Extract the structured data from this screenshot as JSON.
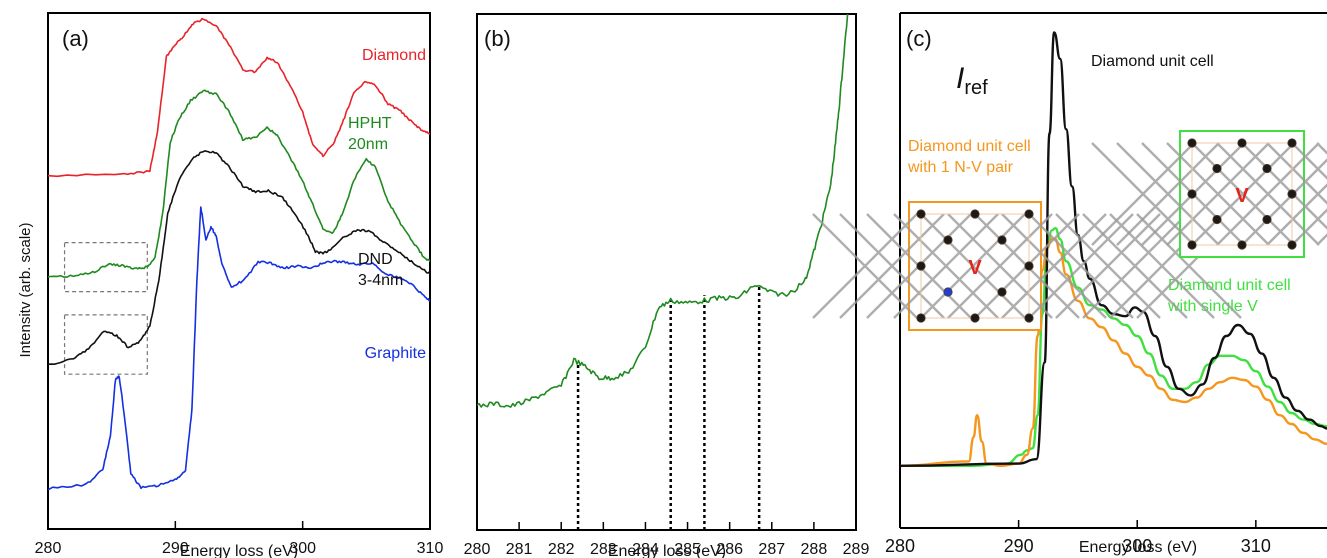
{
  "figure": {
    "shared_ylabel": "Intensitv (arb. scale)"
  },
  "chart_data": [
    {
      "type": "line",
      "panel_label": "(a)",
      "xlabel": "Energy loss (eV)",
      "ylabel": "Intensitv (arb. scale)",
      "xlim": [
        280,
        310
      ],
      "ylim": [
        0,
        100
      ],
      "xticks": [
        280,
        290,
        300,
        310
      ],
      "xtick_labels": [
        "280",
        "290",
        "300",
        "310"
      ],
      "grid": false,
      "series": [
        {
          "name": "Diamond",
          "label_lines": [
            "Diamond"
          ],
          "color": "#e8232a",
          "x": [
            280,
            286,
            288,
            288.6,
            289.3,
            289.9,
            290.6,
            291.4,
            292.2,
            293.2,
            294.2,
            295.3,
            296.3,
            297.2,
            298,
            299,
            300,
            300.8,
            301.6,
            302.4,
            303.2,
            304,
            305,
            305.8,
            306.7,
            307.7,
            308.6,
            309.4,
            310
          ],
          "values": [
            68.5,
            68.7,
            69.4,
            77,
            91.5,
            93.5,
            95.5,
            98,
            98.8,
            97.5,
            94,
            89,
            88.5,
            91.3,
            90.5,
            86,
            80.8,
            74.5,
            72.4,
            74.5,
            79.2,
            84.5,
            86.8,
            85.8,
            82.4,
            81,
            78.8,
            77.1,
            76.6
          ]
        },
        {
          "name": "HPHT 20nm",
          "label_lines": [
            "HPHT",
            "20nm"
          ],
          "color": "#1f8a1f",
          "x": [
            280,
            282,
            283.5,
            284.8,
            285.8,
            286.8,
            287.8,
            288.4,
            289,
            289.6,
            290.3,
            291.2,
            292.2,
            293.2,
            294.2,
            295.3,
            296.3,
            297.2,
            298,
            299,
            300,
            300.8,
            301.6,
            302.4,
            303.2,
            304,
            305,
            305.8,
            306.7,
            307.7,
            308.6,
            309.4,
            310
          ],
          "values": [
            48.8,
            49,
            49.7,
            51.3,
            51.1,
            50.4,
            50.8,
            52.6,
            61,
            75,
            79.5,
            83,
            84.9,
            84.3,
            81,
            75.5,
            75.8,
            77.9,
            76.2,
            72,
            67.5,
            62.8,
            58.2,
            57.4,
            61.5,
            67.5,
            71.8,
            69.8,
            63.5,
            59.2,
            55.8,
            53.1,
            51.8
          ]
        },
        {
          "name": "DND 3-4nm",
          "label_lines": [
            "DND",
            "3-4nm"
          ],
          "color": "#111111",
          "x": [
            280,
            282,
            283.2,
            284.4,
            285.4,
            286.3,
            287.2,
            288,
            288.7,
            289.4,
            290.2,
            291.2,
            292.2,
            293.2,
            294.2,
            295.3,
            296.3,
            297.3,
            298.3,
            299.3,
            300.3,
            301,
            301.6,
            302.3,
            303.3,
            304.3,
            305.3,
            306.3,
            307.3,
            308.3,
            309.3,
            310
          ],
          "values": [
            31.8,
            33,
            35,
            38.3,
            37.5,
            35.2,
            36.3,
            39.4,
            48,
            61,
            67.2,
            71.4,
            73.3,
            72.9,
            70.2,
            66.5,
            65.3,
            65.5,
            64.5,
            61.5,
            57.4,
            53.8,
            53.3,
            54.4,
            56.7,
            58,
            57.6,
            55.7,
            54.1,
            52.2,
            50.6,
            49.4
          ]
        },
        {
          "name": "Graphite",
          "label_lines": [
            "Graphite"
          ],
          "color": "#1430e0",
          "x": [
            280,
            283,
            284.3,
            284.9,
            285.3,
            285.6,
            286,
            286.5,
            287.3,
            288.5,
            290,
            290.8,
            291.3,
            291.7,
            292,
            292.4,
            292.8,
            293.2,
            293.7,
            294.4,
            295.4,
            296.5,
            297.5,
            298.5,
            299.5,
            300.5,
            301.5,
            302.5,
            303.5,
            304.5,
            305.5,
            306.5,
            307.5,
            308.5,
            309.5,
            310
          ],
          "values": [
            7.8,
            8.6,
            11.5,
            18,
            29,
            29.5,
            22,
            10.8,
            8,
            8.3,
            9.5,
            11.5,
            23,
            48.5,
            62.5,
            56,
            58.5,
            56.8,
            51,
            47,
            48.2,
            51.8,
            51.5,
            50.5,
            51,
            50.5,
            51.4,
            51.9,
            51.6,
            51.3,
            51.5,
            49.5,
            48.7,
            47.6,
            45.2,
            44.3
          ]
        }
      ],
      "annotations": [
        {
          "type": "dashed-box",
          "x0": 281.3,
          "x1": 287.8,
          "y0": 46,
          "y1": 55.5
        },
        {
          "type": "dashed-box",
          "x0": 281.3,
          "x1": 287.8,
          "y0": 30,
          "y1": 41.5
        }
      ]
    },
    {
      "type": "line",
      "panel_label": "(b)",
      "xlabel": "Energy loss (eV)",
      "xlim": [
        280,
        289
      ],
      "ylim": [
        0,
        100
      ],
      "xticks": [
        280,
        281,
        282,
        283,
        284,
        285,
        286,
        287,
        288,
        289
      ],
      "xtick_labels": [
        "280",
        "281",
        "282",
        "283",
        "284",
        "285",
        "286",
        "287",
        "288",
        "289"
      ],
      "grid": false,
      "series": [
        {
          "name": "",
          "color": "#1f8a1f",
          "x": [
            280,
            280.4,
            280.8,
            281.2,
            281.6,
            282,
            282.3,
            282.6,
            282.9,
            283.2,
            283.6,
            284,
            284.3,
            284.6,
            285,
            285.4,
            285.8,
            286.2,
            286.6,
            287,
            287.4,
            287.8,
            288,
            288.2,
            288.4,
            288.5,
            288.6,
            288.7,
            288.8
          ],
          "values": [
            24,
            24.5,
            24,
            25,
            26.5,
            28,
            33,
            31.5,
            29.5,
            29.5,
            30.5,
            35.5,
            43,
            44.5,
            44,
            44.5,
            45,
            45,
            47.5,
            46,
            45.5,
            48.5,
            54,
            60,
            67,
            74,
            82,
            91,
            100
          ]
        }
      ],
      "annotations": [
        {
          "type": "dotted-vline",
          "x": 282.4,
          "y_top": 32.5
        },
        {
          "type": "dotted-vline",
          "x": 284.6,
          "y_top": 44.5
        },
        {
          "type": "dotted-vline",
          "x": 285.4,
          "y_top": 45.5
        },
        {
          "type": "dotted-vline",
          "x": 286.7,
          "y_top": 47.5
        }
      ]
    },
    {
      "type": "line",
      "panel_label": "(c)",
      "xlabel": "Energy loss (eV)",
      "xlim": [
        280,
        316
      ],
      "ylim": [
        0,
        100
      ],
      "xticks": [
        280,
        290,
        300,
        310
      ],
      "xtick_labels": [
        "280",
        "290",
        "300",
        "310"
      ],
      "grid": false,
      "ref_label": "I",
      "ref_subscript": "ref",
      "series": [
        {
          "name": "Diamond unit cell",
          "label_lines": [
            "Diamond unit cell"
          ],
          "color": "#111111",
          "x": [
            280,
            290,
            291.5,
            292.2,
            292.6,
            293,
            293.5,
            294,
            294.5,
            295,
            295.5,
            296,
            297,
            298,
            299,
            299.8,
            300.5,
            301.5,
            302.5,
            303.5,
            304.5,
            305.5,
            306.5,
            307.5,
            308.5,
            309.5,
            310.5,
            311.5,
            312.5,
            313.5,
            314.5,
            315.5,
            316
          ],
          "values": [
            0.5,
            1,
            2,
            24,
            76,
            99,
            93,
            77,
            64,
            53,
            47,
            43,
            37,
            35,
            34.5,
            36.5,
            35.5,
            30,
            23,
            18,
            16.5,
            19,
            25,
            30,
            32.5,
            30.5,
            26,
            20.5,
            16,
            13,
            11,
            9.5,
            9
          ]
        },
        {
          "name": "Diamond unit cell with single V",
          "label_lines": [
            "Diamond unit cell",
            "with single V"
          ],
          "color": "#3fe03f",
          "x": [
            280,
            286,
            289,
            290.2,
            290.7,
            291.2,
            291.6,
            292,
            292.4,
            292.8,
            293.1,
            293.5,
            294,
            295,
            296,
            297,
            298,
            299,
            300,
            301,
            302,
            303,
            304,
            305,
            306,
            307,
            308,
            309,
            310,
            311,
            312,
            313,
            314,
            315,
            316
          ],
          "values": [
            0.5,
            0.5,
            1,
            3,
            4,
            4.5,
            12,
            35,
            50,
            54,
            54.5,
            52,
            47,
            41,
            37,
            36,
            34,
            32.5,
            30,
            26,
            21,
            18,
            18,
            19.5,
            23.5,
            25.5,
            25.5,
            24.5,
            22,
            18.5,
            15,
            12.5,
            11,
            10,
            9.5
          ]
        },
        {
          "name": "Diamond unit cell with 1 N-V pair",
          "label_lines": [
            "Diamond unit cell",
            "with 1 N-V pair"
          ],
          "color": "#f5961e",
          "x": [
            280,
            285.8,
            286.2,
            286.5,
            286.9,
            287.3,
            288.5,
            290,
            290.7,
            291.2,
            291.6,
            292,
            292.4,
            292.8,
            293.1,
            293.5,
            294,
            295,
            296,
            297,
            298,
            299,
            300,
            301,
            302,
            303,
            304,
            305,
            306,
            307,
            308,
            309,
            310,
            311,
            312,
            313,
            314,
            315,
            316
          ],
          "values": [
            0.5,
            1.5,
            7,
            12,
            6,
            1,
            0.5,
            1,
            3,
            9,
            30,
            45,
            50,
            52,
            52,
            49,
            44,
            38,
            34,
            32,
            29,
            26,
            23,
            21,
            18,
            15.5,
            15,
            16,
            18,
            19.5,
            20.5,
            20,
            18.5,
            15.5,
            12,
            10,
            8,
            6.5,
            5.5
          ]
        }
      ],
      "insets": [
        {
          "name": "N-V pair unit cell",
          "border": "#f5961e",
          "vacancy": "V",
          "has_nitrogen": true
        },
        {
          "name": "single V unit cell",
          "border": "#3fe03f",
          "vacancy": "V",
          "has_nitrogen": false
        }
      ]
    }
  ]
}
